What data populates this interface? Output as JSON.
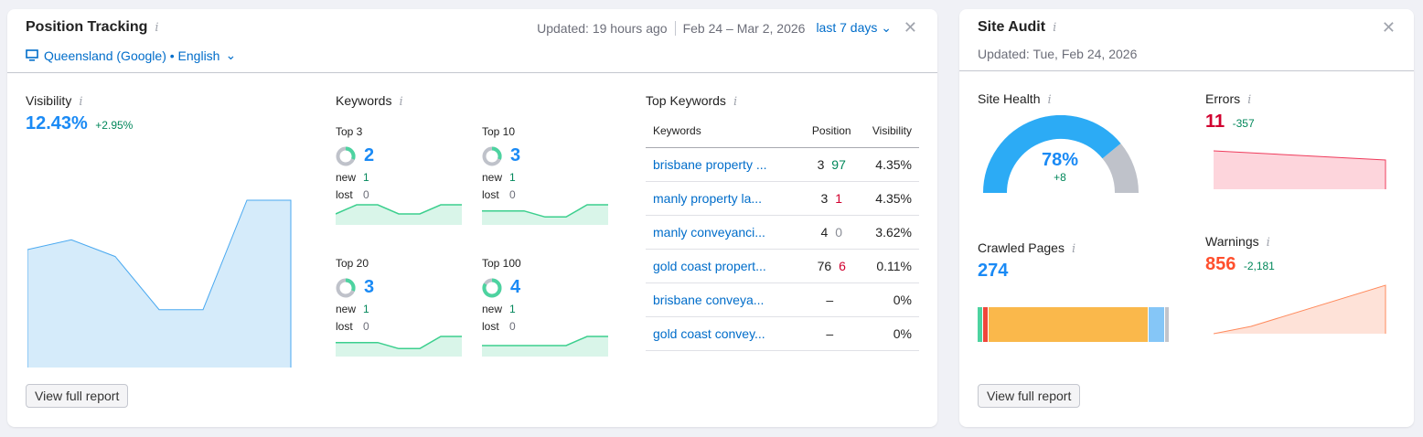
{
  "position_tracking": {
    "title": "Position Tracking",
    "updated": "Updated: 19 hours ago",
    "date_range": "Feb 24 – Mar 2, 2026",
    "period": "last 7 days",
    "location": "Queensland (Google) • English",
    "visibility": {
      "label": "Visibility",
      "value": "12.43%",
      "delta": "+2.95%",
      "trend": [
        8.9,
        9.6,
        8.4,
        4.6,
        4.6,
        12.43,
        12.43
      ]
    },
    "keywords": {
      "label": "Keywords",
      "groups": [
        {
          "label": "Top 3",
          "value": "2",
          "new_label": "new",
          "new": "1",
          "lost_label": "lost",
          "lost": "0",
          "trend": [
            1,
            2,
            2,
            1,
            1,
            2,
            2
          ]
        },
        {
          "label": "Top 10",
          "value": "3",
          "new_label": "new",
          "new": "1",
          "lost_label": "lost",
          "lost": "0",
          "trend": [
            2,
            2,
            2,
            1,
            1,
            3,
            3
          ]
        },
        {
          "label": "Top 20",
          "value": "3",
          "new_label": "new",
          "new": "1",
          "lost_label": "lost",
          "lost": "0",
          "trend": [
            2,
            2,
            2,
            1,
            1,
            3,
            3
          ]
        },
        {
          "label": "Top 100",
          "value": "4",
          "new_label": "new",
          "new": "1",
          "lost_label": "lost",
          "lost": "0",
          "trend": [
            3,
            3,
            3,
            3,
            3,
            4,
            4
          ]
        }
      ]
    },
    "top_keywords": {
      "label": "Top Keywords",
      "columns": [
        "Keywords",
        "Position",
        "Visibility"
      ],
      "rows": [
        {
          "keyword": "brisbane property ...",
          "position": "3",
          "change": "97",
          "dir": "up",
          "visibility": "4.35%"
        },
        {
          "keyword": "manly property la...",
          "position": "3",
          "change": "1",
          "dir": "down",
          "visibility": "4.35%"
        },
        {
          "keyword": "manly conveyanci...",
          "position": "4",
          "change": "0",
          "dir": "none",
          "visibility": "3.62%"
        },
        {
          "keyword": "gold coast propert...",
          "position": "76",
          "change": "6",
          "dir": "down",
          "visibility": "0.11%"
        },
        {
          "keyword": "brisbane conveya...",
          "position": "–",
          "change": "",
          "dir": "none",
          "visibility": "0%"
        },
        {
          "keyword": "gold coast convey...",
          "position": "–",
          "change": "",
          "dir": "none",
          "visibility": "0%"
        }
      ]
    },
    "button": "View full report"
  },
  "site_audit": {
    "title": "Site Audit",
    "updated": "Updated: Tue, Feb 24, 2026",
    "site_health": {
      "label": "Site Health",
      "value": "78%",
      "percent": 78,
      "delta": "+8"
    },
    "errors": {
      "label": "Errors",
      "value": "11",
      "delta": "-357",
      "trend": [
        368,
        11
      ]
    },
    "crawled": {
      "label": "Crawled Pages",
      "value": "274",
      "segments": [
        {
          "color": "#4dd3a0",
          "share": 2.5
        },
        {
          "color": "#f0463a",
          "share": 2.5
        },
        {
          "color": "#fab84b",
          "share": 83
        },
        {
          "color": "#85c6f7",
          "share": 8
        },
        {
          "color": "#c1c4cb",
          "share": 2
        }
      ]
    },
    "warnings": {
      "label": "Warnings",
      "value": "856",
      "delta": "-2,181",
      "trend": [
        0,
        70,
        856
      ]
    },
    "button": "View full report"
  }
}
